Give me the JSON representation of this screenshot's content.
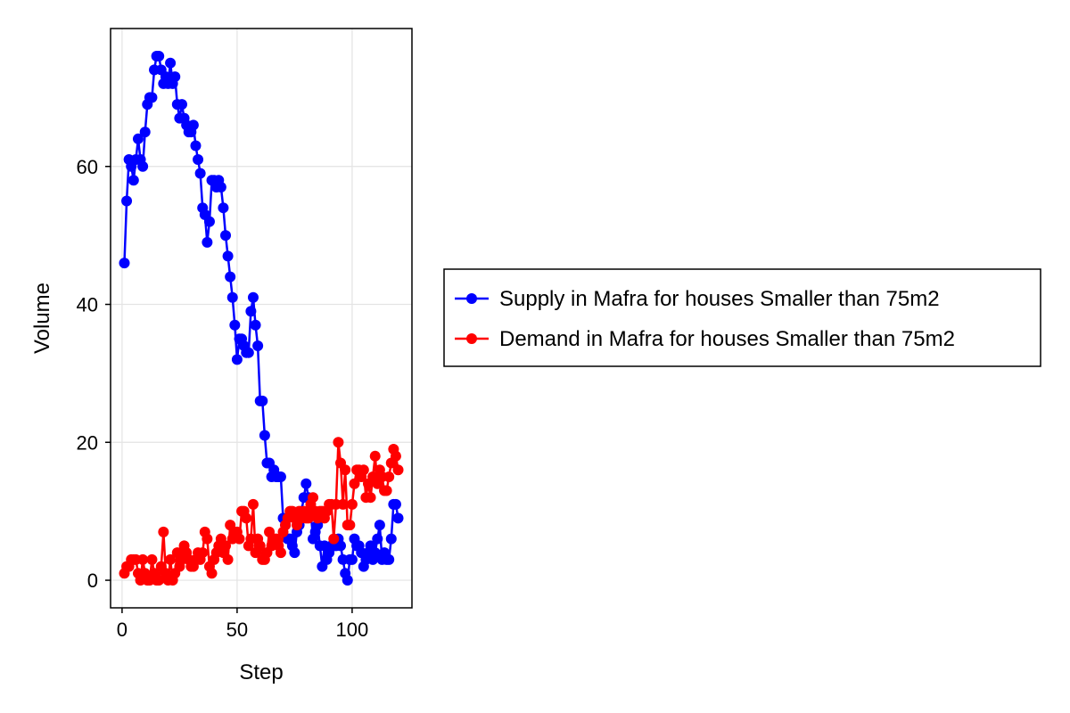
{
  "chart_data": {
    "type": "line",
    "title": "",
    "xlabel": "Step",
    "ylabel": "Volume",
    "xlim": [
      -5,
      126
    ],
    "ylim": [
      -4,
      80
    ],
    "xticks": [
      0,
      50,
      100
    ],
    "yticks": [
      0,
      20,
      40,
      60
    ],
    "grid": true,
    "legend_position": "right",
    "series": [
      {
        "name": "Supply in Mafra for houses Smaller than 75m2",
        "color": "#0000ff",
        "x": [
          1,
          2,
          3,
          4,
          5,
          6,
          7,
          8,
          9,
          10,
          11,
          12,
          13,
          14,
          15,
          16,
          17,
          18,
          19,
          20,
          21,
          22,
          23,
          24,
          25,
          26,
          27,
          28,
          29,
          30,
          31,
          32,
          33,
          34,
          35,
          36,
          37,
          38,
          39,
          40,
          41,
          42,
          43,
          44,
          45,
          46,
          47,
          48,
          49,
          50,
          51,
          52,
          53,
          54,
          55,
          56,
          57,
          58,
          59,
          60,
          61,
          62,
          63,
          64,
          65,
          66,
          67,
          68,
          69,
          70,
          71,
          72,
          73,
          74,
          75,
          76,
          77,
          78,
          79,
          80,
          81,
          82,
          83,
          84,
          85,
          86,
          87,
          88,
          89,
          90,
          91,
          92,
          93,
          94,
          95,
          96,
          97,
          98,
          99,
          100,
          101,
          102,
          103,
          104,
          105,
          106,
          107,
          108,
          109,
          110,
          111,
          112,
          113,
          114,
          115,
          116,
          117,
          118,
          119,
          120
        ],
        "values": [
          46,
          55,
          61,
          60,
          58,
          61,
          64,
          61,
          60,
          65,
          69,
          70,
          70,
          74,
          76,
          76,
          74,
          72,
          73,
          72,
          75,
          72,
          73,
          69,
          67,
          69,
          67,
          66,
          65,
          65,
          66,
          63,
          61,
          59,
          54,
          53,
          49,
          52,
          58,
          58,
          57,
          58,
          57,
          54,
          50,
          47,
          44,
          41,
          37,
          32,
          35,
          35,
          34,
          33,
          33,
          39,
          41,
          37,
          34,
          26,
          26,
          21,
          17,
          17,
          15,
          16,
          15,
          15,
          15,
          9,
          8,
          6,
          6,
          5,
          4,
          7,
          8,
          10,
          12,
          14,
          12,
          10,
          6,
          7,
          8,
          5,
          2,
          5,
          3,
          4,
          5,
          5,
          5,
          6,
          5,
          3,
          1,
          0,
          3,
          3,
          6,
          5,
          5,
          4,
          2,
          3,
          4,
          5,
          3,
          4,
          6,
          8,
          3,
          4,
          3,
          3,
          6,
          11,
          11,
          9
        ]
      },
      {
        "name": "Demand in Mafra for houses Smaller than 75m2",
        "color": "#ff0000",
        "x": [
          1,
          2,
          3,
          4,
          5,
          6,
          7,
          8,
          9,
          10,
          11,
          12,
          13,
          14,
          15,
          16,
          17,
          18,
          19,
          20,
          21,
          22,
          23,
          24,
          25,
          26,
          27,
          28,
          29,
          30,
          31,
          32,
          33,
          34,
          35,
          36,
          37,
          38,
          39,
          40,
          41,
          42,
          43,
          44,
          45,
          46,
          47,
          48,
          49,
          50,
          51,
          52,
          53,
          54,
          55,
          56,
          57,
          58,
          59,
          60,
          61,
          62,
          63,
          64,
          65,
          66,
          67,
          68,
          69,
          70,
          71,
          72,
          73,
          74,
          75,
          76,
          77,
          78,
          79,
          80,
          81,
          82,
          83,
          84,
          85,
          86,
          87,
          88,
          89,
          90,
          91,
          92,
          93,
          94,
          95,
          96,
          97,
          98,
          99,
          100,
          101,
          102,
          103,
          104,
          105,
          106,
          107,
          108,
          109,
          110,
          111,
          112,
          113,
          114,
          115,
          116,
          117,
          118,
          119,
          120
        ],
        "values": [
          1,
          2,
          2,
          3,
          3,
          3,
          1,
          0,
          3,
          1,
          0,
          0,
          3,
          1,
          0,
          0,
          2,
          7,
          1,
          0,
          3,
          0,
          1,
          4,
          2,
          3,
          5,
          4,
          3,
          2,
          2,
          3,
          4,
          3,
          4,
          7,
          6,
          2,
          1,
          3,
          4,
          5,
          6,
          4,
          5,
          3,
          8,
          6,
          7,
          7,
          6,
          10,
          10,
          9,
          5,
          6,
          11,
          4,
          6,
          5,
          3,
          3,
          4,
          7,
          5,
          6,
          6,
          5,
          4,
          7,
          8,
          9,
          10,
          10,
          9,
          8,
          10,
          9,
          10,
          9,
          9,
          11,
          12,
          10,
          9,
          10,
          10,
          9,
          10,
          11,
          11,
          6,
          11,
          20,
          17,
          11,
          16,
          8,
          8,
          11,
          14,
          16,
          16,
          15,
          16,
          12,
          14,
          12,
          15,
          18,
          14,
          16,
          15,
          13,
          13,
          15,
          17,
          19,
          18,
          16
        ]
      }
    ]
  }
}
